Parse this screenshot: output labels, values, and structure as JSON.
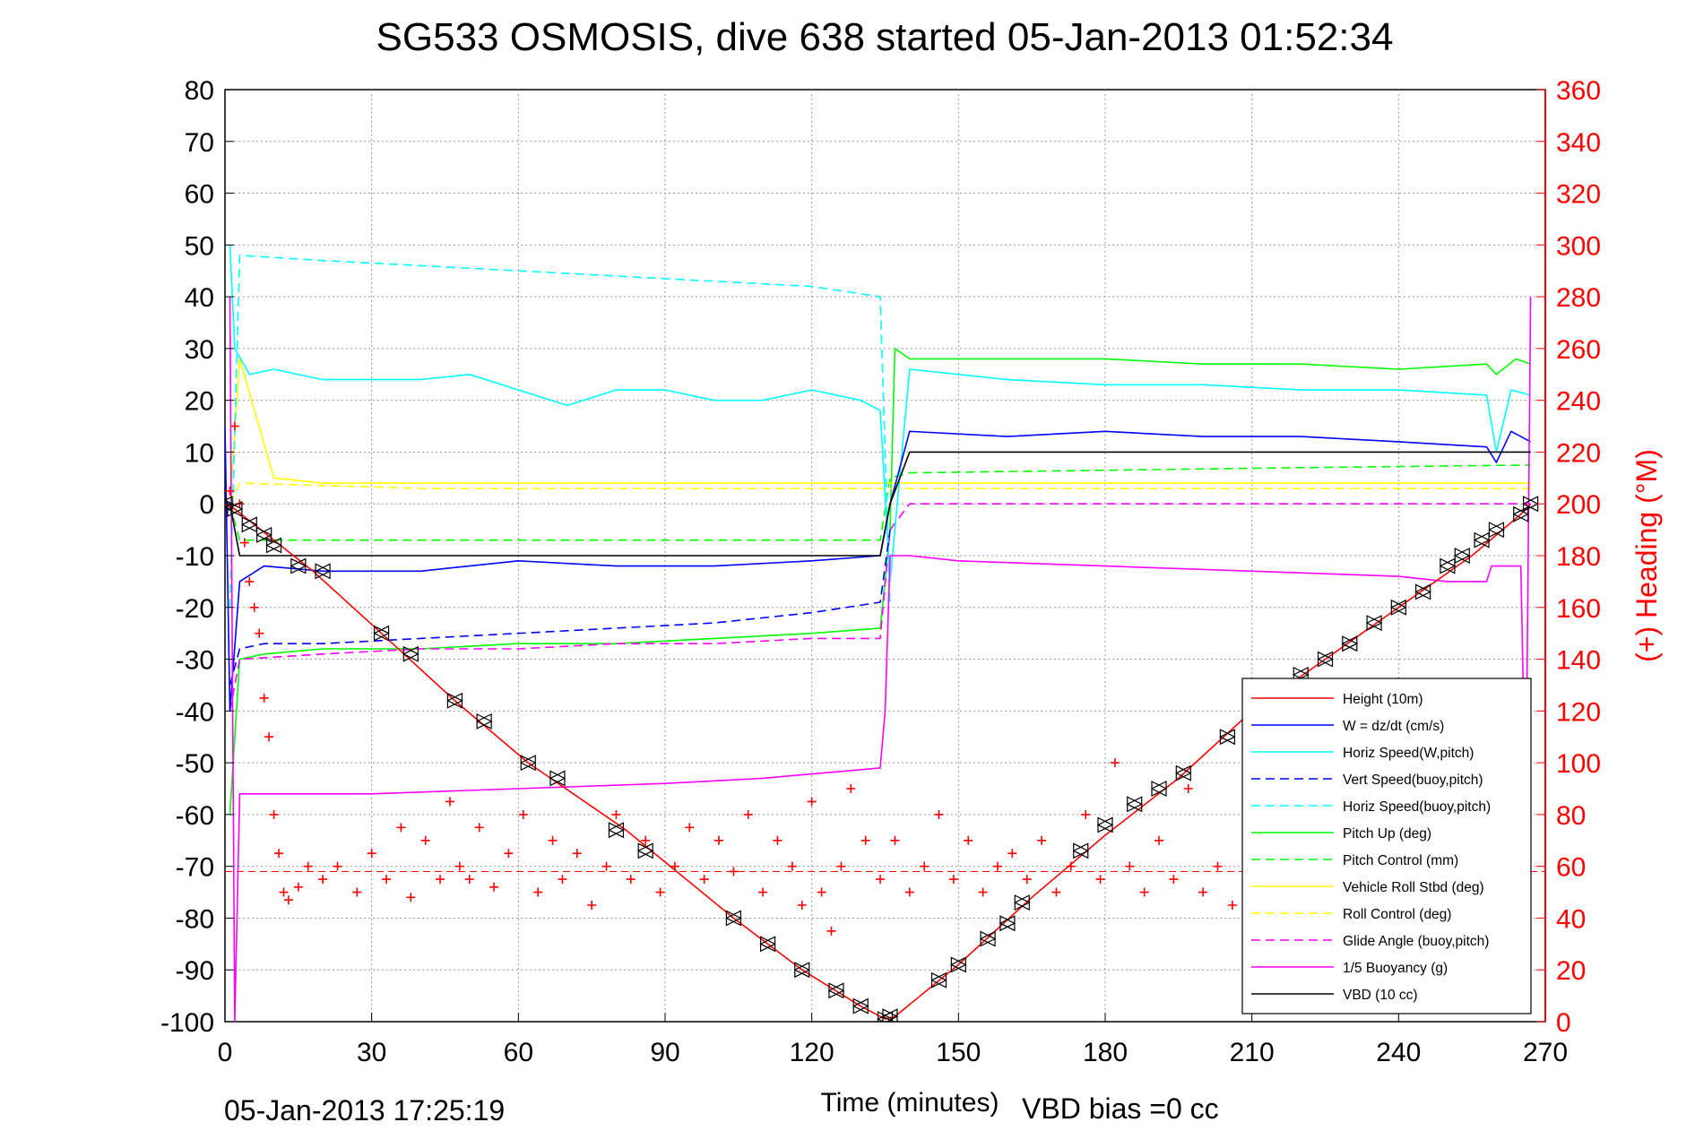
{
  "chart_data": {
    "type": "line",
    "title": "SG533 OSMOSIS, dive 638 started 05-Jan-2013 01:52:34",
    "xlabel": "Time (minutes)",
    "ylabel": "",
    "y2label": "(+) Heading (°M)",
    "xlim": [
      0,
      270
    ],
    "ylim": [
      -100,
      80
    ],
    "y2lim": [
      0,
      360
    ],
    "x_ticks": [
      0,
      30,
      60,
      90,
      120,
      150,
      180,
      210,
      240,
      270
    ],
    "y_ticks": [
      80,
      70,
      60,
      50,
      40,
      30,
      20,
      10,
      0,
      -10,
      -20,
      -30,
      -40,
      -50,
      -60,
      -70,
      -80,
      -90,
      -100
    ],
    "y2_ticks": [
      360,
      340,
      320,
      300,
      280,
      260,
      240,
      220,
      200,
      180,
      160,
      140,
      120,
      100,
      80,
      60,
      40,
      20,
      0
    ],
    "grid": true,
    "legend_position": "bottom-right",
    "footer_left": "05-Jan-2013 17:25:19",
    "footer_right": "VBD bias =0 cc",
    "colors": {
      "red": "#ff0000",
      "blue": "#0000ff",
      "cyan": "#00ffff",
      "green": "#00ff00",
      "yellow": "#ffff00",
      "magenta": "#ff00ff",
      "black": "#000000"
    },
    "series": [
      {
        "name": "Height (10m)",
        "color": "#ff0000",
        "style": "solid",
        "x": [
          0,
          2,
          18,
          32,
          47,
          62,
          82,
          104,
          118,
          130,
          135,
          137,
          150,
          165,
          180,
          195,
          210,
          225,
          240,
          255,
          265,
          267
        ],
        "y": [
          0,
          -1,
          -13,
          -25,
          -38,
          -50,
          -63,
          -80,
          -90,
          -97,
          -99.5,
          -99,
          -89,
          -76,
          -64,
          -53,
          -40,
          -30,
          -20,
          -10,
          -2,
          0
        ]
      },
      {
        "name": "W = dz/dt (cm/s)",
        "color": "#0000ff",
        "style": "solid",
        "x": [
          0,
          1,
          3,
          8,
          20,
          40,
          60,
          80,
          100,
          120,
          134,
          136,
          140,
          160,
          180,
          200,
          220,
          240,
          258,
          260,
          263,
          267
        ],
        "y": [
          15,
          -40,
          -15,
          -12,
          -13,
          -13,
          -11,
          -12,
          -12,
          -11,
          -10,
          0,
          14,
          13,
          14,
          13,
          13,
          12,
          11,
          8,
          14,
          12
        ]
      },
      {
        "name": "Horiz Speed(W,pitch)",
        "color": "#00ffff",
        "style": "solid",
        "x": [
          1,
          2,
          5,
          10,
          20,
          40,
          50,
          60,
          70,
          80,
          90,
          100,
          110,
          120,
          130,
          134,
          136,
          140,
          160,
          180,
          200,
          220,
          240,
          258,
          260,
          263,
          267
        ],
        "y": [
          50,
          30,
          25,
          26,
          24,
          24,
          25,
          22,
          19,
          22,
          22,
          20,
          20,
          22,
          20,
          18,
          -15,
          26,
          24,
          23,
          23,
          22,
          22,
          21,
          10,
          22,
          21
        ]
      },
      {
        "name": "Vert Speed(buoy,pitch)",
        "color": "#0000ff",
        "style": "dashed",
        "x": [
          1,
          3,
          8,
          20,
          40,
          60,
          80,
          100,
          120,
          134,
          136
        ],
        "y": [
          -35,
          -28,
          -27,
          -27,
          -26,
          -25,
          -24,
          -23,
          -21,
          -19,
          -5
        ]
      },
      {
        "name": "Horiz Speed(buoy,pitch)",
        "color": "#00ffff",
        "style": "dashed",
        "x": [
          1,
          3,
          20,
          40,
          60,
          80,
          100,
          120,
          134,
          136
        ],
        "y": [
          -20,
          48,
          47,
          46,
          45,
          44,
          43,
          42,
          40,
          -20
        ]
      },
      {
        "name": "Pitch Up (deg)",
        "color": "#00ff00",
        "style": "solid",
        "x": [
          1,
          3,
          8,
          20,
          40,
          60,
          80,
          100,
          120,
          134,
          136,
          137,
          140,
          160,
          180,
          200,
          220,
          240,
          258,
          260,
          264,
          267
        ],
        "y": [
          -60,
          -30,
          -29,
          -28,
          -28,
          -27,
          -27,
          -26,
          -25,
          -24,
          -5,
          30,
          28,
          28,
          28,
          27,
          27,
          26,
          27,
          25,
          28,
          27
        ]
      },
      {
        "name": "Pitch Control (mm)",
        "color": "#00ff00",
        "style": "dashed",
        "x": [
          1,
          3,
          20,
          60,
          100,
          134,
          136,
          140,
          180,
          220,
          267
        ],
        "y": [
          0,
          -7,
          -7,
          -7,
          -7,
          -7,
          5,
          6,
          6.5,
          7,
          7.5
        ]
      },
      {
        "name": "Vehicle Roll Stbd (deg)",
        "color": "#ffff00",
        "style": "solid",
        "x": [
          1,
          3,
          10,
          20,
          40,
          60,
          80,
          100,
          120,
          134,
          136,
          140,
          160,
          180,
          200,
          220,
          240,
          267
        ],
        "y": [
          0,
          28,
          5,
          4,
          4,
          4,
          4,
          4,
          4,
          4,
          4,
          4,
          4,
          4,
          4,
          4,
          4,
          4
        ]
      },
      {
        "name": "Roll Control (deg)",
        "color": "#ffff00",
        "style": "dashed",
        "x": [
          1,
          3,
          40,
          80,
          120,
          134,
          136,
          180,
          220,
          267
        ],
        "y": [
          0,
          4,
          3,
          3,
          3,
          3,
          3,
          3,
          3,
          3
        ]
      },
      {
        "name": "Glide Angle (buoy,pitch)",
        "color": "#ff00ff",
        "style": "dashed",
        "x": [
          1,
          3,
          20,
          40,
          60,
          80,
          100,
          120,
          134,
          136,
          140,
          267
        ],
        "y": [
          -40,
          -30,
          -29,
          -28,
          -28,
          -27,
          -27,
          -26,
          -26,
          -5,
          0,
          0
        ]
      },
      {
        "name": "1/5 Buoyancy (g)",
        "color": "#ff00ff",
        "style": "solid",
        "x": [
          1,
          2,
          3,
          10,
          20,
          30,
          60,
          90,
          110,
          134,
          135,
          136,
          140,
          150,
          180,
          210,
          240,
          250,
          258,
          259,
          262,
          265,
          266,
          267
        ],
        "y": [
          40,
          -100,
          -56,
          -56,
          -56,
          -56,
          -55,
          -54,
          -53,
          -51,
          -40,
          -10,
          -10,
          -11,
          -12,
          -13,
          -14,
          -15,
          -15,
          -12,
          -12,
          -12,
          -60,
          40
        ]
      },
      {
        "name": "VBD (10 cc)",
        "color": "#000000",
        "style": "solid",
        "x": [
          1,
          3,
          134,
          135,
          136,
          140,
          267
        ],
        "y": [
          0,
          -10,
          -10,
          -5,
          0,
          10,
          10
        ]
      }
    ],
    "heading_series": {
      "color": "#ff0000",
      "axis": "right",
      "mean": 58,
      "x": [
        1,
        2,
        3,
        4,
        5,
        6,
        7,
        8,
        9,
        10,
        11,
        12,
        13,
        15,
        17,
        20,
        23,
        27,
        30,
        33,
        36,
        38,
        41,
        44,
        46,
        48,
        50,
        52,
        55,
        58,
        61,
        64,
        67,
        69,
        72,
        75,
        78,
        80,
        83,
        86,
        89,
        92,
        95,
        98,
        101,
        104,
        107,
        110,
        113,
        116,
        118,
        120,
        122,
        124,
        126,
        128,
        131,
        134,
        137,
        140,
        143,
        146,
        149,
        152,
        155,
        158,
        161,
        164,
        167,
        170,
        173,
        176,
        179,
        182,
        185,
        188,
        191,
        194,
        197,
        200,
        203,
        206,
        209,
        212,
        215,
        218,
        221,
        224,
        227,
        230,
        233,
        236,
        239,
        242,
        245,
        248,
        251,
        254,
        257,
        260,
        263,
        266
      ],
      "y": [
        205,
        230,
        200,
        185,
        170,
        160,
        150,
        125,
        110,
        80,
        65,
        50,
        47,
        52,
        60,
        55,
        60,
        50,
        65,
        55,
        75,
        48,
        70,
        55,
        85,
        60,
        55,
        75,
        52,
        65,
        80,
        50,
        70,
        55,
        65,
        45,
        60,
        80,
        55,
        70,
        50,
        60,
        75,
        55,
        70,
        58,
        80,
        50,
        70,
        60,
        45,
        85,
        50,
        35,
        60,
        90,
        70,
        55,
        70,
        50,
        60,
        80,
        55,
        70,
        50,
        60,
        65,
        55,
        70,
        50,
        60,
        80,
        55,
        100,
        60,
        50,
        70,
        55,
        90,
        50,
        60,
        45,
        65,
        55,
        70,
        50,
        60,
        80,
        55,
        65,
        50,
        70,
        55,
        60,
        75,
        50,
        60,
        70,
        55,
        65,
        60,
        80
      ]
    },
    "dive_markers": {
      "x": [
        0,
        2,
        5,
        8,
        10,
        15,
        20,
        32,
        38,
        47,
        53,
        62,
        68,
        80,
        86,
        104,
        111,
        118,
        125,
        130,
        135,
        136,
        146,
        150,
        156,
        160,
        163,
        175,
        180,
        186,
        191,
        196,
        205,
        210,
        215,
        220,
        225,
        230,
        235,
        240,
        245,
        250,
        253,
        257,
        260,
        265,
        267
      ],
      "y": [
        0,
        -1,
        -4,
        -6,
        -8,
        -12,
        -13,
        -25,
        -29,
        -38,
        -42,
        -50,
        -53,
        -63,
        -67,
        -80,
        -85,
        -90,
        -94,
        -97,
        -99.5,
        -99,
        -92,
        -89,
        -84,
        -81,
        -77,
        -67,
        -62,
        -58,
        -55,
        -52,
        -45,
        -40,
        -36,
        -33,
        -30,
        -27,
        -23,
        -20,
        -17,
        -12,
        -10,
        -7,
        -5,
        -2,
        0
      ]
    }
  }
}
